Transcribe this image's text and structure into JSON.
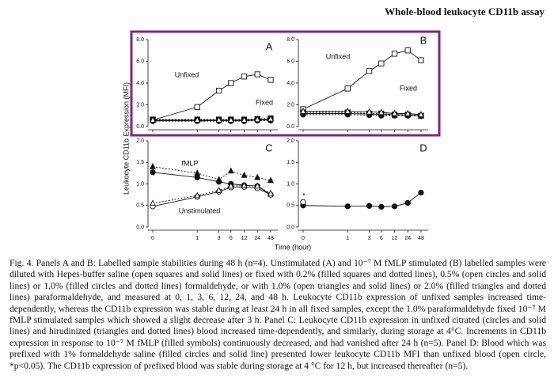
{
  "header": "Whole-blood leukocyte CD11b assay",
  "y_label": "Leukocyte CD11b Expression (MFI)",
  "x_label": "Time (hour)",
  "chart_data": [
    {
      "type": "line",
      "panel": "A",
      "x_tick_labels": false,
      "categories": [
        "0",
        "1",
        "3",
        "6",
        "12",
        "24",
        "48"
      ],
      "ylim": [
        0,
        8
      ],
      "yticks": [
        {
          "value": 0,
          "label": "0.0"
        },
        {
          "value": 2,
          "label": "2.0"
        },
        {
          "value": 4,
          "label": "4.0"
        },
        {
          "value": 6,
          "label": "6.0"
        },
        {
          "value": 8,
          "label": "8.0"
        }
      ],
      "annotations": [
        "Unfixed",
        "Fixed"
      ],
      "series": [
        {
          "name": "Unfixed",
          "marker": "open-square",
          "dash": false,
          "values": [
            0.6,
            1.8,
            3.3,
            4.0,
            4.6,
            4.8,
            4.3
          ]
        },
        {
          "name": "Fixed",
          "marker": "filled-square",
          "dash": true,
          "values": [
            0.65,
            0.65,
            0.65,
            0.65,
            0.65,
            0.7,
            0.75
          ]
        },
        {
          "marker": "open-circle",
          "dash": false,
          "values": [
            0.55,
            0.55,
            0.55,
            0.55,
            0.55,
            0.6,
            0.6
          ]
        },
        {
          "marker": "filled-circle",
          "dash": true,
          "values": [
            0.5,
            0.5,
            0.5,
            0.5,
            0.5,
            0.55,
            0.55
          ]
        },
        {
          "marker": "open-triangle",
          "dash": false,
          "values": [
            0.6,
            0.6,
            0.6,
            0.6,
            0.6,
            0.65,
            0.7
          ]
        }
      ]
    },
    {
      "type": "line",
      "panel": "B",
      "x_tick_labels": false,
      "categories": [
        "0",
        "1",
        "3",
        "6",
        "12",
        "24",
        "48"
      ],
      "ylim": [
        0,
        8
      ],
      "yticks": [
        {
          "value": 0,
          "label": "0.0"
        },
        {
          "value": 2,
          "label": "2.0"
        },
        {
          "value": 4,
          "label": "4.0"
        },
        {
          "value": 6,
          "label": "6.0"
        },
        {
          "value": 8,
          "label": "8.0"
        }
      ],
      "annotations": [
        "Unfixed",
        "Fixed"
      ],
      "series": [
        {
          "name": "Unfixed",
          "marker": "open-square",
          "dash": false,
          "values": [
            1.6,
            3.5,
            5.1,
            5.8,
            6.7,
            7.0,
            6.1
          ]
        },
        {
          "name": "Fixed",
          "marker": "filled-square",
          "dash": true,
          "values": [
            1.3,
            1.3,
            1.2,
            1.2,
            1.1,
            1.1,
            1.0
          ]
        },
        {
          "marker": "open-circle",
          "dash": false,
          "values": [
            1.2,
            1.2,
            1.15,
            1.1,
            1.1,
            1.05,
            1.0
          ]
        },
        {
          "marker": "filled-circle",
          "dash": true,
          "values": [
            1.1,
            1.1,
            1.05,
            1.0,
            1.0,
            1.0,
            0.95
          ]
        },
        {
          "marker": "open-triangle",
          "dash": false,
          "values": [
            1.4,
            1.4,
            1.35,
            1.3,
            1.2,
            1.2,
            1.1
          ]
        }
      ]
    },
    {
      "type": "line",
      "panel": "C",
      "x_tick_labels": true,
      "categories": [
        "0",
        "1",
        "3",
        "6",
        "12",
        "24",
        "48"
      ],
      "ylim": [
        0,
        2
      ],
      "yticks": [
        {
          "value": 0,
          "label": "0.0"
        },
        {
          "value": 0.5,
          "label": "0.5"
        },
        {
          "value": 1,
          "label": "1.0"
        },
        {
          "value": 1.5,
          "label": "1.5"
        },
        {
          "value": 2,
          "label": "2.0"
        }
      ],
      "annotations": [
        "fMLP",
        "Unstimulated"
      ],
      "series": [
        {
          "name": "fMLP",
          "marker": "filled-circle",
          "dash": false,
          "values": [
            1.27,
            1.15,
            1.05,
            1.0,
            0.97,
            0.95,
            0.75
          ]
        },
        {
          "marker": "filled-triangle",
          "dash": true,
          "values": [
            1.4,
            1.25,
            1.1,
            1.3,
            1.2,
            1.15,
            1.08
          ]
        },
        {
          "name": "Unstimulated",
          "marker": "open-circle",
          "dash": false,
          "values": [
            0.48,
            0.7,
            0.82,
            0.92,
            0.93,
            0.9,
            0.75
          ]
        },
        {
          "marker": "open-triangle",
          "dash": true,
          "values": [
            0.55,
            0.73,
            0.85,
            0.95,
            0.96,
            0.95,
            0.78
          ]
        }
      ]
    },
    {
      "type": "line",
      "panel": "D",
      "x_tick_labels": true,
      "categories": [
        "0",
        "1",
        "3",
        "6",
        "12",
        "24",
        "48"
      ],
      "ylim": [
        0,
        2
      ],
      "yticks": [
        {
          "value": 0,
          "label": "0.0"
        },
        {
          "value": 0.5,
          "label": "0.5"
        },
        {
          "value": 1,
          "label": "1.0"
        },
        {
          "value": 1.5,
          "label": "1.5"
        },
        {
          "value": 2,
          "label": "2.0"
        }
      ],
      "annotations": [
        "*"
      ],
      "series": [
        {
          "marker": "filled-circle",
          "dash": false,
          "values": [
            0.5,
            0.48,
            0.49,
            0.47,
            0.48,
            0.56,
            0.8
          ]
        },
        {
          "marker": "open-circle",
          "dash": false,
          "values": [
            0.58,
            null,
            null,
            null,
            null,
            null,
            null
          ]
        }
      ]
    }
  ],
  "caption": "Fig. 4. Panels A and B: Labelled sample stabilities during 48 h (n=4). Unstimulated (A) and 10⁻⁷ M fMLP stimulated (B) labelled samples were diluted with Hepes-buffer saline (open squares and solid lines) or fixed with 0.2% (filled squares and dotted lines), 0.5% (open circles and solid lines) or 1.0% (filled circles and dotted lines) formaldehyde, or with 1.0% (open triangles and solid lines) or 2.0% (filled triangles and dotted lines) paraformaldehyde, and measured at 0, 1, 3, 6, 12, 24, and 48 h. Leukocyte CD11b expression of unfixed samples increased time-dependently, whereas the CD11b expression was stable during at least 24 h in all fixed samples, except the 1.0% paraformaldehyde fixed 10⁻⁷ M fMLP stimulated samples which showed a slight decrease after 3 h. Panel C: Leukocyte CD11b expression in unfixed citrated (circles and solid lines) and hirudinized (triangles and dotted lines) blood increased time-dependently, and similarly, during storage at 4°C. Increments in CD11b expression in response to 10⁻⁷ M fMLP (filled symbols) continuously decreased, and had vanished after 24 h (n=5). Panel D: Blood which was prefixed with 1% formaldehyde saline (filled circles and solid line) presented lower leukocyte CD11b MFI than unfixed blood (open circle, *p<0.05). The CD11b expression of prefixed blood was stable during storage at 4 °C for 12 h, but increased thereafter (n=5)."
}
